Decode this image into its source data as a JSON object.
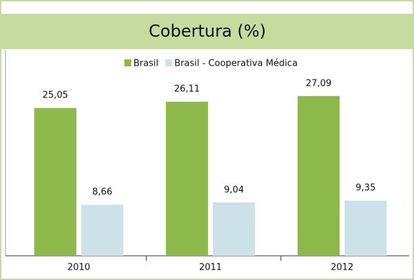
{
  "chart_data": {
    "type": "bar",
    "title": "Cobertura (%)",
    "categories": [
      "2010",
      "2011",
      "2012"
    ],
    "series": [
      {
        "name": "Brasil",
        "color": "#8db84a",
        "values": [
          25.05,
          26.11,
          27.09
        ],
        "value_labels": [
          "25,05",
          "26,11",
          "27,09"
        ]
      },
      {
        "name": "Brasil - Cooperativa Médica",
        "color": "#cde2e8",
        "values": [
          8.66,
          9.04,
          9.35
        ],
        "value_labels": [
          "8,66",
          "9,04",
          "9,35"
        ]
      }
    ],
    "ylim": [
      0,
      30
    ],
    "legend": "top"
  }
}
